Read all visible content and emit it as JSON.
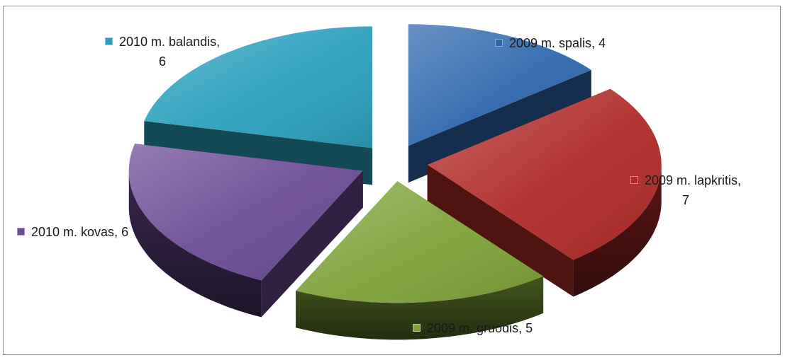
{
  "chart_data": {
    "type": "pie",
    "style": "3d-exploded",
    "series": [
      {
        "name": "2009 m. spalis",
        "value": 4,
        "color": "#2e67ad"
      },
      {
        "name": "2009 m. lapkritis",
        "value": 7,
        "color": "#b02a28"
      },
      {
        "name": "2009 m. gruodis",
        "value": 5,
        "color": "#7ea138"
      },
      {
        "name": "2010 m. kovas",
        "value": 6,
        "color": "#6a4a94"
      },
      {
        "name": "2010 m. balandis",
        "value": 6,
        "color": "#2aa0bd"
      }
    ],
    "labels": [
      {
        "name": "2009 m. spalis",
        "value": "4"
      },
      {
        "name": "2009 m. lapkritis",
        "value": "7"
      },
      {
        "name": "2009 m. gruodis",
        "value": "5"
      },
      {
        "name": "2010 m. kovas",
        "value": "6"
      },
      {
        "name": "2010 m. balandis",
        "value": "6"
      }
    ],
    "separator": ", ",
    "legend": "none"
  }
}
